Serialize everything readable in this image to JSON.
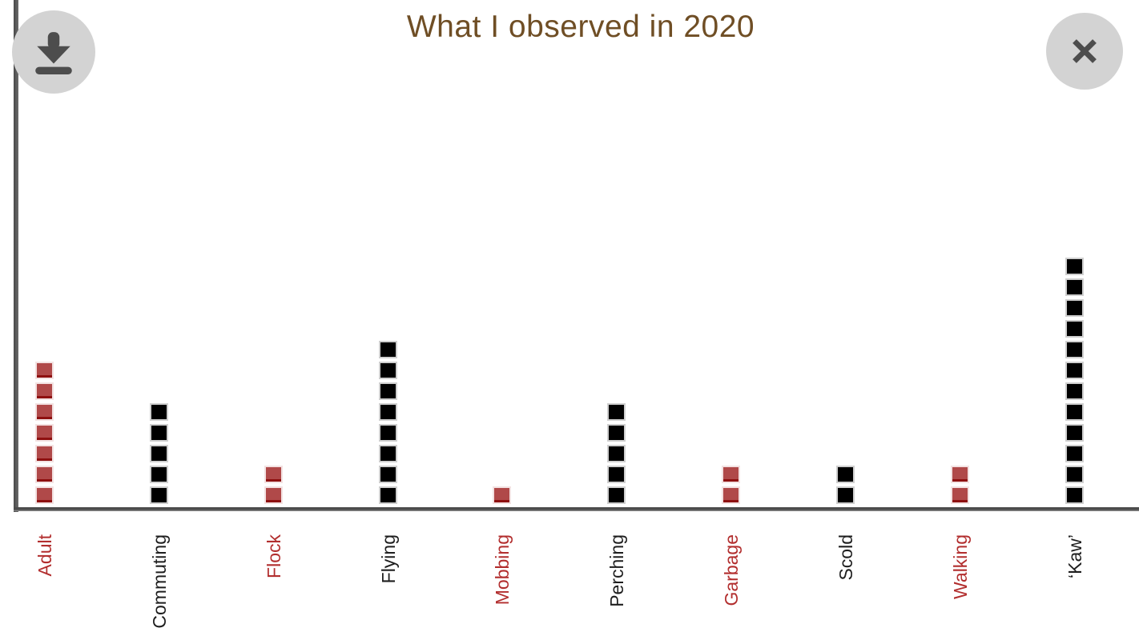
{
  "title": "What I observed in 2020",
  "toolbar": {
    "icons": {
      "download": "download-icon",
      "close": "close-icon"
    }
  },
  "colors": {
    "title": "#6f4e25",
    "axis": "#4c4c4c",
    "button_bg": "#d3d3d3",
    "button_glyph": "#4d4d4d",
    "red_fill": "#b04949",
    "red_edge": "#f3e2e2",
    "red_shadow": "#8e1010",
    "black_fill": "#000000",
    "black_edge": "#cfcfcf",
    "label_red": "#b22e2e",
    "label_black": "#1e1e1e"
  },
  "chart_data": {
    "type": "bar",
    "style": "waffle-unit-squares",
    "title": "What I observed in 2020",
    "categories": [
      "Adult",
      "Commuting",
      "Flock",
      "Flying",
      "Mobbing",
      "Perching",
      "Garbage",
      "Scold",
      "Walking",
      "‘Kaw’"
    ],
    "values": [
      7,
      5,
      2,
      8,
      1,
      5,
      2,
      2,
      2,
      12
    ],
    "series_colors": [
      "red",
      "black",
      "red",
      "black",
      "red",
      "black",
      "red",
      "black",
      "red",
      "black"
    ],
    "xlabel": "",
    "ylabel": "",
    "ylim": [
      0,
      12
    ],
    "grid": false,
    "legend": "none",
    "unit_value": 1
  }
}
